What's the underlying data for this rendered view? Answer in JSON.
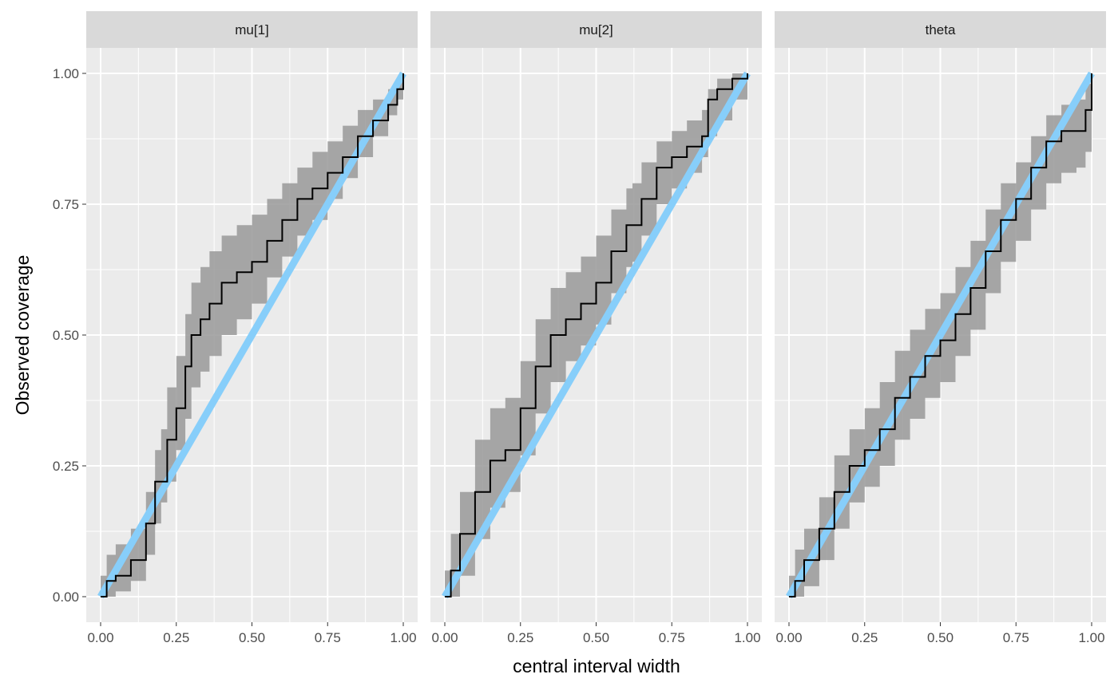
{
  "chart_data": {
    "type": "line",
    "xlabel": "central interval width",
    "ylabel": "Observed coverage",
    "xlim": [
      0,
      1
    ],
    "ylim": [
      0,
      1
    ],
    "x_ticks": [
      "0.00",
      "0.25",
      "0.50",
      "0.75",
      "1.00"
    ],
    "y_ticks": [
      "0.00",
      "0.25",
      "0.50",
      "0.75",
      "1.00"
    ],
    "grid": true,
    "reference_line": {
      "color": "#87CEFA",
      "from": [
        0,
        0
      ],
      "to": [
        1,
        1
      ]
    },
    "band_color": "#999999",
    "line_color": "#000000",
    "panels": [
      {
        "title": "mu[1]",
        "x": [
          0,
          0.02,
          0.05,
          0.1,
          0.15,
          0.18,
          0.2,
          0.22,
          0.25,
          0.28,
          0.3,
          0.33,
          0.36,
          0.4,
          0.45,
          0.5,
          0.55,
          0.6,
          0.65,
          0.7,
          0.75,
          0.8,
          0.85,
          0.9,
          0.95,
          0.98,
          1.0
        ],
        "observed": [
          0,
          0.03,
          0.04,
          0.07,
          0.14,
          0.22,
          0.22,
          0.3,
          0.36,
          0.44,
          0.5,
          0.53,
          0.56,
          0.6,
          0.62,
          0.64,
          0.68,
          0.72,
          0.76,
          0.78,
          0.81,
          0.84,
          0.88,
          0.91,
          0.94,
          0.97,
          1.0
        ],
        "lower": [
          0,
          0.0,
          0.01,
          0.03,
          0.08,
          0.14,
          0.18,
          0.22,
          0.28,
          0.34,
          0.4,
          0.43,
          0.46,
          0.5,
          0.53,
          0.56,
          0.61,
          0.65,
          0.69,
          0.72,
          0.76,
          0.8,
          0.84,
          0.88,
          0.92,
          0.95,
          1.0
        ],
        "upper": [
          0.04,
          0.08,
          0.1,
          0.13,
          0.2,
          0.28,
          0.32,
          0.4,
          0.46,
          0.54,
          0.6,
          0.63,
          0.66,
          0.69,
          0.71,
          0.73,
          0.76,
          0.79,
          0.82,
          0.85,
          0.87,
          0.9,
          0.93,
          0.95,
          0.97,
          0.99,
          1.0
        ]
      },
      {
        "title": "mu[2]",
        "x": [
          0,
          0.02,
          0.05,
          0.1,
          0.15,
          0.2,
          0.25,
          0.3,
          0.35,
          0.4,
          0.45,
          0.5,
          0.55,
          0.6,
          0.62,
          0.65,
          0.7,
          0.75,
          0.8,
          0.85,
          0.87,
          0.9,
          0.95,
          1.0
        ],
        "observed": [
          0,
          0.05,
          0.12,
          0.2,
          0.26,
          0.28,
          0.36,
          0.44,
          0.5,
          0.53,
          0.56,
          0.6,
          0.66,
          0.71,
          0.71,
          0.76,
          0.82,
          0.84,
          0.86,
          0.88,
          0.95,
          0.97,
          0.99,
          1.0
        ],
        "lower": [
          0,
          0.0,
          0.04,
          0.11,
          0.17,
          0.2,
          0.27,
          0.35,
          0.41,
          0.45,
          0.48,
          0.52,
          0.58,
          0.63,
          0.64,
          0.69,
          0.75,
          0.78,
          0.81,
          0.84,
          0.88,
          0.91,
          0.95,
          1.0
        ],
        "upper": [
          0.05,
          0.12,
          0.2,
          0.3,
          0.36,
          0.38,
          0.45,
          0.53,
          0.59,
          0.62,
          0.65,
          0.69,
          0.74,
          0.78,
          0.79,
          0.83,
          0.87,
          0.89,
          0.91,
          0.93,
          0.97,
          0.99,
          1.0,
          1.0
        ]
      },
      {
        "title": "theta",
        "x": [
          0,
          0.02,
          0.05,
          0.1,
          0.15,
          0.2,
          0.25,
          0.3,
          0.35,
          0.4,
          0.45,
          0.5,
          0.55,
          0.6,
          0.65,
          0.7,
          0.75,
          0.8,
          0.85,
          0.9,
          0.95,
          0.98,
          1.0
        ],
        "observed": [
          0,
          0.03,
          0.07,
          0.13,
          0.2,
          0.25,
          0.28,
          0.32,
          0.38,
          0.42,
          0.46,
          0.49,
          0.54,
          0.59,
          0.66,
          0.72,
          0.76,
          0.82,
          0.87,
          0.89,
          0.89,
          0.93,
          1.0
        ],
        "lower": [
          0,
          0.0,
          0.02,
          0.07,
          0.13,
          0.18,
          0.21,
          0.25,
          0.3,
          0.34,
          0.38,
          0.41,
          0.46,
          0.51,
          0.58,
          0.64,
          0.68,
          0.74,
          0.79,
          0.81,
          0.82,
          0.85,
          1.0
        ],
        "upper": [
          0.04,
          0.09,
          0.13,
          0.19,
          0.27,
          0.32,
          0.36,
          0.41,
          0.47,
          0.51,
          0.55,
          0.58,
          0.63,
          0.68,
          0.74,
          0.79,
          0.83,
          0.88,
          0.92,
          0.94,
          0.95,
          0.98,
          1.0
        ]
      }
    ]
  }
}
